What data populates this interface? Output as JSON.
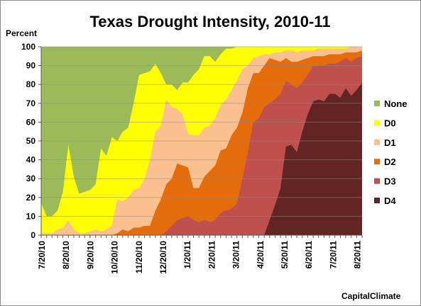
{
  "chart_data": {
    "type": "area",
    "title": "Texas Drought Intensity, 2010-11",
    "ylabel": "Percent",
    "ylim": [
      0,
      100
    ],
    "yticks": [
      0,
      10,
      20,
      30,
      40,
      50,
      60,
      70,
      80,
      90,
      100
    ],
    "xlabels": [
      "7/20/10",
      "8/20/10",
      "9/20/10",
      "10/20/10",
      "11/20/10",
      "12/20/10",
      "1/20/11",
      "2/20/11",
      "3/20/11",
      "4/20/11",
      "5/20/11",
      "6/20/11",
      "7/20/11",
      "8/20/11"
    ],
    "stacking": "cumulative",
    "grid": "horizontal",
    "legend_position": "right",
    "credit": "CapitalClimate",
    "series": [
      {
        "name": "D4",
        "color": "#632523",
        "values": [
          0,
          0,
          0,
          0,
          0,
          0,
          0,
          0,
          0,
          0,
          0,
          0,
          0,
          0,
          0,
          0,
          0,
          0,
          0,
          0,
          0,
          0,
          0,
          0,
          0,
          0,
          0,
          0,
          0,
          0,
          0,
          0,
          0,
          0,
          0,
          0,
          0,
          0,
          0,
          0,
          0,
          0,
          8,
          16,
          25,
          47,
          48,
          44,
          55,
          64,
          71,
          72,
          71,
          75,
          75,
          73,
          78,
          74,
          77,
          81
        ]
      },
      {
        "name": "D3",
        "color": "#c0504d",
        "values": [
          0,
          0,
          0,
          0,
          0,
          0,
          0,
          0,
          0,
          0,
          0,
          0,
          0,
          0,
          0,
          0,
          0,
          0,
          0,
          0,
          0,
          0,
          0,
          2,
          5,
          8,
          9,
          10,
          8,
          7,
          8,
          7,
          8,
          12,
          13,
          14,
          17,
          30,
          44,
          60,
          62,
          68,
          70,
          72,
          75,
          82,
          80,
          78,
          81,
          85,
          90,
          90,
          90,
          91,
          91,
          92,
          94,
          92,
          94,
          95
        ]
      },
      {
        "name": "D2",
        "color": "#e46c0a",
        "values": [
          0,
          0,
          0,
          0,
          0,
          0,
          0,
          0,
          0,
          0,
          0,
          0,
          0,
          0,
          1,
          3,
          2,
          4,
          4,
          5,
          5,
          13,
          19,
          27,
          30,
          38,
          37,
          36,
          25,
          25,
          31,
          34,
          37,
          45,
          46,
          53,
          57,
          65,
          78,
          86,
          86,
          90,
          94,
          93,
          92,
          94,
          92,
          92,
          93,
          94,
          95,
          95,
          95,
          96,
          96,
          96,
          97,
          97,
          97,
          98
        ]
      },
      {
        "name": "D1",
        "color": "#fac090",
        "values": [
          1,
          1,
          1,
          3,
          4,
          8,
          3,
          1,
          1,
          2,
          3,
          2,
          3,
          5,
          19,
          18,
          20,
          24,
          25,
          30,
          40,
          55,
          58,
          72,
          68,
          67,
          64,
          54,
          53,
          53,
          57,
          58,
          62,
          69,
          72,
          77,
          82,
          88,
          90,
          94,
          95,
          96,
          96,
          97,
          97,
          98,
          98,
          97,
          98,
          98,
          98,
          99,
          99,
          99,
          99,
          99,
          99,
          100,
          100,
          100
        ]
      },
      {
        "name": "D0",
        "color": "#ffff00",
        "values": [
          17,
          10,
          10,
          13,
          23,
          48,
          31,
          22,
          23,
          24,
          27,
          46,
          42,
          52,
          50,
          55,
          57,
          70,
          85,
          86,
          87,
          91,
          86,
          80,
          80,
          77,
          81,
          81,
          85,
          88,
          95,
          95,
          92,
          96,
          99,
          99,
          100,
          100,
          100,
          100,
          100,
          100,
          100,
          100,
          100,
          100,
          100,
          100,
          100,
          100,
          100,
          100,
          100,
          100,
          100,
          100,
          100,
          100,
          100,
          100
        ]
      },
      {
        "name": "None",
        "color": "#9bbb59",
        "values": [
          100,
          100,
          100,
          100,
          100,
          100,
          100,
          100,
          100,
          100,
          100,
          100,
          100,
          100,
          100,
          100,
          100,
          100,
          100,
          100,
          100,
          100,
          100,
          100,
          100,
          100,
          100,
          100,
          100,
          100,
          100,
          100,
          100,
          100,
          100,
          100,
          100,
          100,
          100,
          100,
          100,
          100,
          100,
          100,
          100,
          100,
          100,
          100,
          100,
          100,
          100,
          100,
          100,
          100,
          100,
          100,
          100,
          100,
          100,
          100
        ]
      }
    ]
  }
}
